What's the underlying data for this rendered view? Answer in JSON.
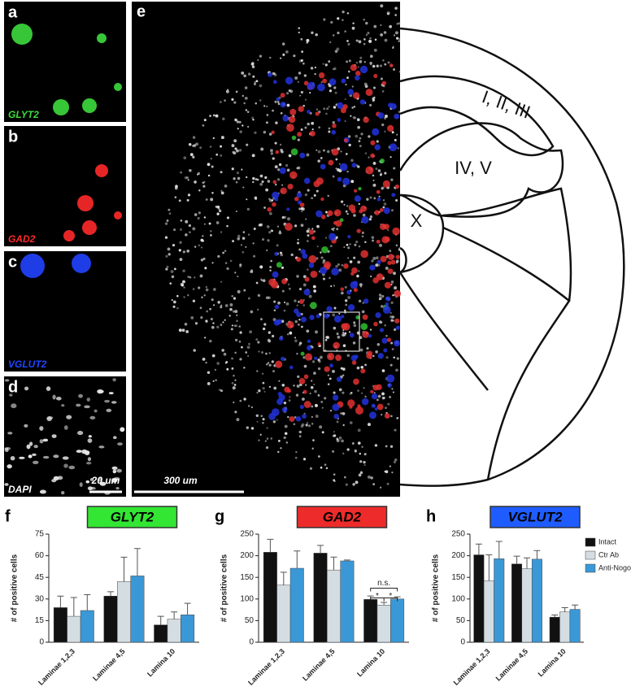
{
  "panels": {
    "a": {
      "label": "a",
      "stain": "GLYT2"
    },
    "b": {
      "label": "b",
      "stain": "GAD2"
    },
    "c": {
      "label": "c",
      "stain": "VGLUT2"
    },
    "d": {
      "label": "d",
      "stain": "DAPI",
      "scale": "20 um"
    },
    "e": {
      "label": "e",
      "scale": "300 um",
      "regions": [
        "I, II, III",
        "IV, V",
        "X"
      ]
    },
    "f": {
      "label": "f"
    },
    "g": {
      "label": "g"
    },
    "h": {
      "label": "h"
    }
  },
  "chart_data": [
    {
      "type": "bar",
      "title": "GLYT2",
      "title_color": "#33e633",
      "ylabel": "# of positive cells",
      "categories": [
        "Laminae 1,2,3",
        "Laminae 4,5",
        "Lamina 10"
      ],
      "series": [
        {
          "name": "Intact",
          "color": "#111111",
          "values": [
            24,
            32,
            12
          ],
          "errors": [
            8,
            3,
            6
          ]
        },
        {
          "name": "Ctr Ab",
          "color": "#d4dde2",
          "values": [
            18,
            42,
            16
          ],
          "errors": [
            13,
            17,
            5
          ]
        },
        {
          "name": "Anti-Nogo-A Ab",
          "color": "#3b98d6",
          "values": [
            22,
            46,
            19
          ],
          "errors": [
            11,
            19,
            8
          ]
        }
      ],
      "ylim": [
        0,
        75
      ],
      "yticks": [
        0,
        15,
        30,
        45,
        60,
        75
      ]
    },
    {
      "type": "bar",
      "title": "GAD2",
      "title_color": "#ee2b2b",
      "ylabel": "# of positive cells",
      "categories": [
        "Laminae 1,2,3",
        "Laminae 4,5",
        "Lamina 10"
      ],
      "series": [
        {
          "name": "Intact",
          "color": "#111111",
          "values": [
            208,
            206,
            99
          ],
          "errors": [
            30,
            18,
            8
          ]
        },
        {
          "name": "Ctr Ab",
          "color": "#d4dde2",
          "values": [
            132,
            167,
            86
          ],
          "errors": [
            30,
            30,
            6
          ]
        },
        {
          "name": "Anti-Nogo-A Ab",
          "color": "#3b98d6",
          "values": [
            171,
            188,
            100
          ],
          "errors": [
            40,
            2,
            5
          ]
        }
      ],
      "ylim": [
        0,
        250
      ],
      "yticks": [
        0,
        50,
        100,
        150,
        200,
        250
      ],
      "annotations": [
        "n.s.",
        "*",
        "*"
      ]
    },
    {
      "type": "bar",
      "title": "VGLUT2",
      "title_color": "#1f5cff",
      "ylabel": "# of positive cells",
      "categories": [
        "Laminae 1,2,3",
        "Laminae 4,5",
        "Lamina 10"
      ],
      "series": [
        {
          "name": "Intact",
          "color": "#111111",
          "values": [
            202,
            181,
            58
          ],
          "errors": [
            25,
            18,
            5
          ]
        },
        {
          "name": "Ctr Ab",
          "color": "#d4dde2",
          "values": [
            142,
            170,
            70
          ],
          "errors": [
            60,
            25,
            10
          ]
        },
        {
          "name": "Anti-Nogo-A Ab",
          "color": "#3b98d6",
          "values": [
            193,
            192,
            76
          ],
          "errors": [
            40,
            20,
            10
          ]
        }
      ],
      "ylim": [
        0,
        250
      ],
      "yticks": [
        0,
        50,
        100,
        150,
        200,
        250
      ],
      "legend": "upper right"
    }
  ]
}
